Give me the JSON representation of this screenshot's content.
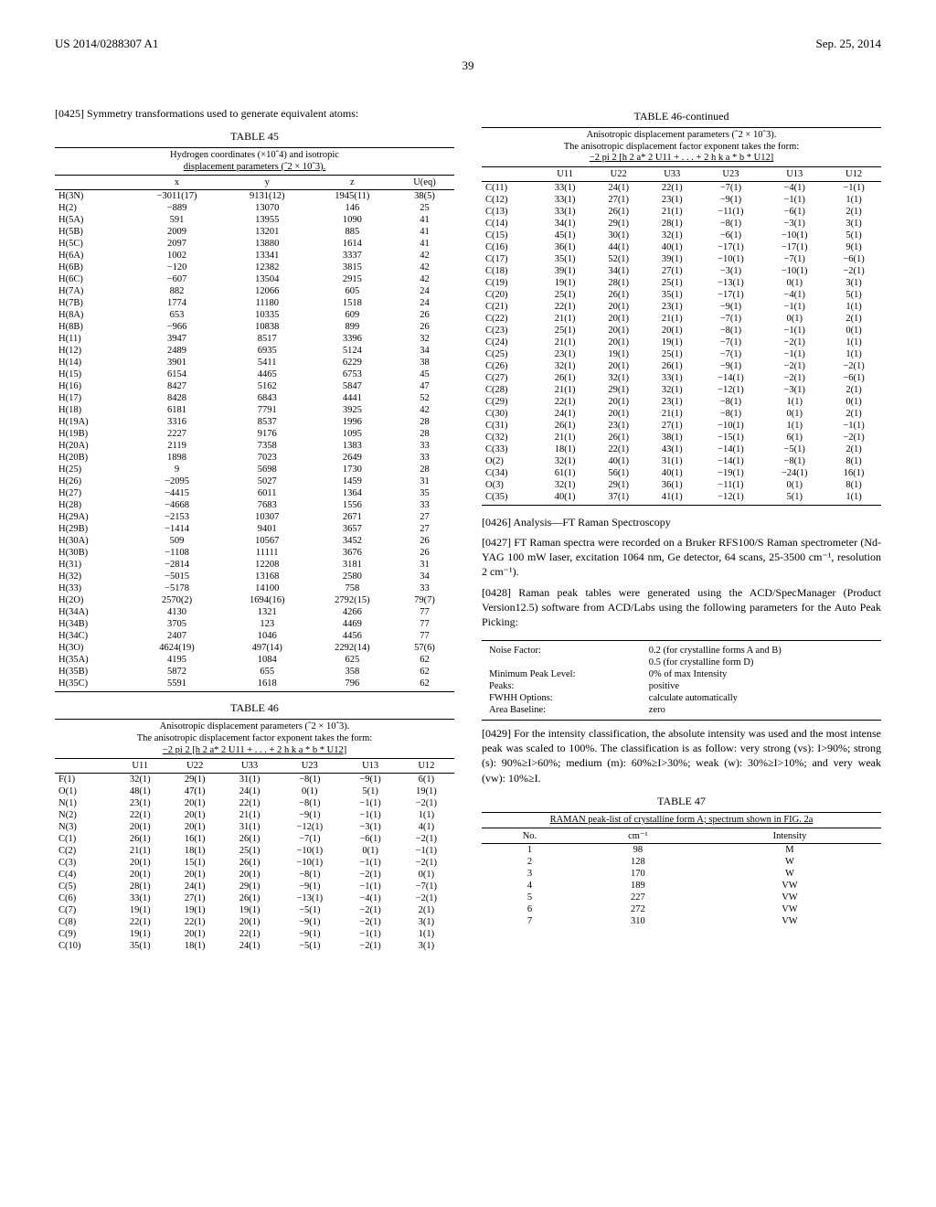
{
  "header": {
    "pub_number": "US 2014/0288307 A1",
    "pub_date": "Sep. 25, 2014",
    "page": "39"
  },
  "paragraphs": {
    "p0425": "[0425]   Symmetry transformations used to generate equivalent atoms:",
    "p0426": "[0426]   Analysis—FT Raman Spectroscopy",
    "p0427": "[0427]   FT Raman spectra were recorded on a Bruker RFS100/S Raman spectrometer (Nd-YAG 100 mW laser, excitation 1064 nm, Ge detector, 64 scans, 25-3500 cm⁻¹, resolution 2 cm⁻¹).",
    "p0428": "[0428]   Raman peak tables were generated using the ACD/SpecManager (Product Version12.5) software from ACD/Labs using the following parameters for the Auto Peak Picking:",
    "p0429": "[0429]   For the intensity classification, the absolute intensity was used and the most intense peak was scaled to 100%. The classification is as follow: very strong (vs): I>90%; strong (s): 90%≥I>60%; medium (m): 60%≥I>30%; weak (w): 30%≥I>10%; and very weak (vw): 10%≥I."
  },
  "table45": {
    "title": "TABLE 45",
    "caption1": "Hydrogen coordinates (×10ˆ4) and isotropic",
    "caption2": "displacement parameters (ˆ2 × 10ˆ3).",
    "headers": [
      "",
      "x",
      "y",
      "z",
      "U(eq)"
    ],
    "rows": [
      [
        "H(3N)",
        "−3011(17)",
        "9131(12)",
        "1945(11)",
        "38(5)"
      ],
      [
        "H(2)",
        "−889",
        "13070",
        "146",
        "25"
      ],
      [
        "H(5A)",
        "591",
        "13955",
        "1090",
        "41"
      ],
      [
        "H(5B)",
        "2009",
        "13201",
        "885",
        "41"
      ],
      [
        "H(5C)",
        "2097",
        "13880",
        "1614",
        "41"
      ],
      [
        "H(6A)",
        "1002",
        "13341",
        "3337",
        "42"
      ],
      [
        "H(6B)",
        "−120",
        "12382",
        "3815",
        "42"
      ],
      [
        "H(6C)",
        "−607",
        "13504",
        "2915",
        "42"
      ],
      [
        "H(7A)",
        "882",
        "12066",
        "605",
        "24"
      ],
      [
        "H(7B)",
        "1774",
        "11180",
        "1518",
        "24"
      ],
      [
        "H(8A)",
        "653",
        "10335",
        "609",
        "26"
      ],
      [
        "H(8B)",
        "−966",
        "10838",
        "899",
        "26"
      ],
      [
        "H(11)",
        "3947",
        "8517",
        "3396",
        "32"
      ],
      [
        "H(12)",
        "2489",
        "6935",
        "5124",
        "34"
      ],
      [
        "H(14)",
        "3901",
        "5411",
        "6229",
        "38"
      ],
      [
        "H(15)",
        "6154",
        "4465",
        "6753",
        "45"
      ],
      [
        "H(16)",
        "8427",
        "5162",
        "5847",
        "47"
      ],
      [
        "H(17)",
        "8428",
        "6843",
        "4441",
        "52"
      ],
      [
        "H(18)",
        "6181",
        "7791",
        "3925",
        "42"
      ],
      [
        "H(19A)",
        "3316",
        "8537",
        "1996",
        "28"
      ],
      [
        "H(19B)",
        "2227",
        "9176",
        "1095",
        "28"
      ],
      [
        "H(20A)",
        "2119",
        "7358",
        "1383",
        "33"
      ],
      [
        "H(20B)",
        "1898",
        "7023",
        "2649",
        "33"
      ],
      [
        "H(25)",
        "9",
        "5698",
        "1730",
        "28"
      ],
      [
        "H(26)",
        "−2095",
        "5027",
        "1459",
        "31"
      ],
      [
        "H(27)",
        "−4415",
        "6011",
        "1364",
        "35"
      ],
      [
        "H(28)",
        "−4668",
        "7683",
        "1556",
        "33"
      ],
      [
        "H(29A)",
        "−2153",
        "10307",
        "2671",
        "27"
      ],
      [
        "H(29B)",
        "−1414",
        "9401",
        "3657",
        "27"
      ],
      [
        "H(30A)",
        "509",
        "10567",
        "3452",
        "26"
      ],
      [
        "H(30B)",
        "−1108",
        "11111",
        "3676",
        "26"
      ],
      [
        "H(31)",
        "−2814",
        "12208",
        "3181",
        "31"
      ],
      [
        "H(32)",
        "−5015",
        "13168",
        "2580",
        "34"
      ],
      [
        "H(33)",
        "−5178",
        "14100",
        "758",
        "33"
      ],
      [
        "H(2O)",
        "2570(2)",
        "1694(16)",
        "2792(15)",
        "79(7)"
      ],
      [
        "H(34A)",
        "4130",
        "1321",
        "4266",
        "77"
      ],
      [
        "H(34B)",
        "3705",
        "123",
        "4469",
        "77"
      ],
      [
        "H(34C)",
        "2407",
        "1046",
        "4456",
        "77"
      ],
      [
        "H(3O)",
        "4624(19)",
        "497(14)",
        "2292(14)",
        "57(6)"
      ],
      [
        "H(35A)",
        "4195",
        "1084",
        "625",
        "62"
      ],
      [
        "H(35B)",
        "5872",
        "655",
        "358",
        "62"
      ],
      [
        "H(35C)",
        "5591",
        "1618",
        "796",
        "62"
      ]
    ]
  },
  "table46": {
    "title": "TABLE 46",
    "title_cont": "TABLE 46-continued",
    "caption1": "Anisotropic displacement parameters (ˆ2 × 10ˆ3).",
    "caption2": "The anisotropic displacement factor exponent takes the form:",
    "caption3": "−2 pi 2 [h 2 a* 2 U11 + . . . + 2 h k a * b * U12]",
    "headers": [
      "",
      "U11",
      "U22",
      "U33",
      "U23",
      "U13",
      "U12"
    ],
    "rows_left": [
      [
        "F(1)",
        "32(1)",
        "29(1)",
        "31(1)",
        "−8(1)",
        "−9(1)",
        "6(1)"
      ],
      [
        "O(1)",
        "48(1)",
        "47(1)",
        "24(1)",
        "0(1)",
        "5(1)",
        "19(1)"
      ],
      [
        "N(1)",
        "23(1)",
        "20(1)",
        "22(1)",
        "−8(1)",
        "−1(1)",
        "−2(1)"
      ],
      [
        "N(2)",
        "22(1)",
        "20(1)",
        "21(1)",
        "−9(1)",
        "−1(1)",
        "1(1)"
      ],
      [
        "N(3)",
        "20(1)",
        "20(1)",
        "31(1)",
        "−12(1)",
        "−3(1)",
        "4(1)"
      ],
      [
        "C(1)",
        "26(1)",
        "16(1)",
        "26(1)",
        "−7(1)",
        "−6(1)",
        "−2(1)"
      ],
      [
        "C(2)",
        "21(1)",
        "18(1)",
        "25(1)",
        "−10(1)",
        "0(1)",
        "−1(1)"
      ],
      [
        "C(3)",
        "20(1)",
        "15(1)",
        "26(1)",
        "−10(1)",
        "−1(1)",
        "−2(1)"
      ],
      [
        "C(4)",
        "20(1)",
        "20(1)",
        "20(1)",
        "−8(1)",
        "−2(1)",
        "0(1)"
      ],
      [
        "C(5)",
        "28(1)",
        "24(1)",
        "29(1)",
        "−9(1)",
        "−1(1)",
        "−7(1)"
      ],
      [
        "C(6)",
        "33(1)",
        "27(1)",
        "26(1)",
        "−13(1)",
        "−4(1)",
        "−2(1)"
      ],
      [
        "C(7)",
        "19(1)",
        "19(1)",
        "19(1)",
        "−5(1)",
        "−2(1)",
        "2(1)"
      ],
      [
        "C(8)",
        "22(1)",
        "22(1)",
        "20(1)",
        "−9(1)",
        "−2(1)",
        "3(1)"
      ],
      [
        "C(9)",
        "19(1)",
        "20(1)",
        "22(1)",
        "−9(1)",
        "−1(1)",
        "1(1)"
      ],
      [
        "C(10)",
        "35(1)",
        "18(1)",
        "24(1)",
        "−5(1)",
        "−2(1)",
        "3(1)"
      ]
    ],
    "rows_right": [
      [
        "C(11)",
        "33(1)",
        "24(1)",
        "22(1)",
        "−7(1)",
        "−4(1)",
        "−1(1)"
      ],
      [
        "C(12)",
        "33(1)",
        "27(1)",
        "23(1)",
        "−9(1)",
        "−1(1)",
        "1(1)"
      ],
      [
        "C(13)",
        "33(1)",
        "26(1)",
        "21(1)",
        "−11(1)",
        "−6(1)",
        "2(1)"
      ],
      [
        "C(14)",
        "34(1)",
        "29(1)",
        "28(1)",
        "−8(1)",
        "−3(1)",
        "3(1)"
      ],
      [
        "C(15)",
        "45(1)",
        "30(1)",
        "32(1)",
        "−6(1)",
        "−10(1)",
        "5(1)"
      ],
      [
        "C(16)",
        "36(1)",
        "44(1)",
        "40(1)",
        "−17(1)",
        "−17(1)",
        "9(1)"
      ],
      [
        "C(17)",
        "35(1)",
        "52(1)",
        "39(1)",
        "−10(1)",
        "−7(1)",
        "−6(1)"
      ],
      [
        "C(18)",
        "39(1)",
        "34(1)",
        "27(1)",
        "−3(1)",
        "−10(1)",
        "−2(1)"
      ],
      [
        "C(19)",
        "19(1)",
        "28(1)",
        "25(1)",
        "−13(1)",
        "0(1)",
        "3(1)"
      ],
      [
        "C(20)",
        "25(1)",
        "26(1)",
        "35(1)",
        "−17(1)",
        "−4(1)",
        "5(1)"
      ],
      [
        "C(21)",
        "22(1)",
        "20(1)",
        "23(1)",
        "−9(1)",
        "−1(1)",
        "1(1)"
      ],
      [
        "C(22)",
        "21(1)",
        "20(1)",
        "21(1)",
        "−7(1)",
        "0(1)",
        "2(1)"
      ],
      [
        "C(23)",
        "25(1)",
        "20(1)",
        "20(1)",
        "−8(1)",
        "−1(1)",
        "0(1)"
      ],
      [
        "C(24)",
        "21(1)",
        "20(1)",
        "19(1)",
        "−7(1)",
        "−2(1)",
        "1(1)"
      ],
      [
        "C(25)",
        "23(1)",
        "19(1)",
        "25(1)",
        "−7(1)",
        "−1(1)",
        "1(1)"
      ],
      [
        "C(26)",
        "32(1)",
        "20(1)",
        "26(1)",
        "−9(1)",
        "−2(1)",
        "−2(1)"
      ],
      [
        "C(27)",
        "26(1)",
        "32(1)",
        "33(1)",
        "−14(1)",
        "−2(1)",
        "−6(1)"
      ],
      [
        "C(28)",
        "21(1)",
        "29(1)",
        "32(1)",
        "−12(1)",
        "−3(1)",
        "2(1)"
      ],
      [
        "C(29)",
        "22(1)",
        "20(1)",
        "23(1)",
        "−8(1)",
        "1(1)",
        "0(1)"
      ],
      [
        "C(30)",
        "24(1)",
        "20(1)",
        "21(1)",
        "−8(1)",
        "0(1)",
        "2(1)"
      ],
      [
        "C(31)",
        "26(1)",
        "23(1)",
        "27(1)",
        "−10(1)",
        "1(1)",
        "−1(1)"
      ],
      [
        "C(32)",
        "21(1)",
        "26(1)",
        "38(1)",
        "−15(1)",
        "6(1)",
        "−2(1)"
      ],
      [
        "C(33)",
        "18(1)",
        "22(1)",
        "43(1)",
        "−14(1)",
        "−5(1)",
        "2(1)"
      ],
      [
        "O(2)",
        "32(1)",
        "40(1)",
        "31(1)",
        "−14(1)",
        "−8(1)",
        "8(1)"
      ],
      [
        "C(34)",
        "61(1)",
        "56(1)",
        "40(1)",
        "−19(1)",
        "−24(1)",
        "16(1)"
      ],
      [
        "O(3)",
        "32(1)",
        "29(1)",
        "36(1)",
        "−11(1)",
        "0(1)",
        "8(1)"
      ],
      [
        "C(35)",
        "40(1)",
        "37(1)",
        "41(1)",
        "−12(1)",
        "5(1)",
        "1(1)"
      ]
    ]
  },
  "param_table": {
    "rows": [
      [
        "Noise Factor:",
        "0.2 (for crystalline forms A and B)"
      ],
      [
        "",
        "0.5 (for crystalline form D)"
      ],
      [
        "Minimum Peak Level:",
        "0% of max Intensity"
      ],
      [
        "Peaks:",
        "positive"
      ],
      [
        "FWHH Options:",
        "calculate automatically"
      ],
      [
        "Area Baseline:",
        "zero"
      ]
    ]
  },
  "table47": {
    "title": "TABLE 47",
    "caption": "RAMAN peak-list of crystalline form A; spectrum shown in FIG. 2a",
    "headers": [
      "No.",
      "cm⁻¹",
      "Intensity"
    ],
    "rows": [
      [
        "1",
        "98",
        "M"
      ],
      [
        "2",
        "128",
        "W"
      ],
      [
        "3",
        "170",
        "W"
      ],
      [
        "4",
        "189",
        "VW"
      ],
      [
        "5",
        "227",
        "VW"
      ],
      [
        "6",
        "272",
        "VW"
      ],
      [
        "7",
        "310",
        "VW"
      ]
    ]
  }
}
